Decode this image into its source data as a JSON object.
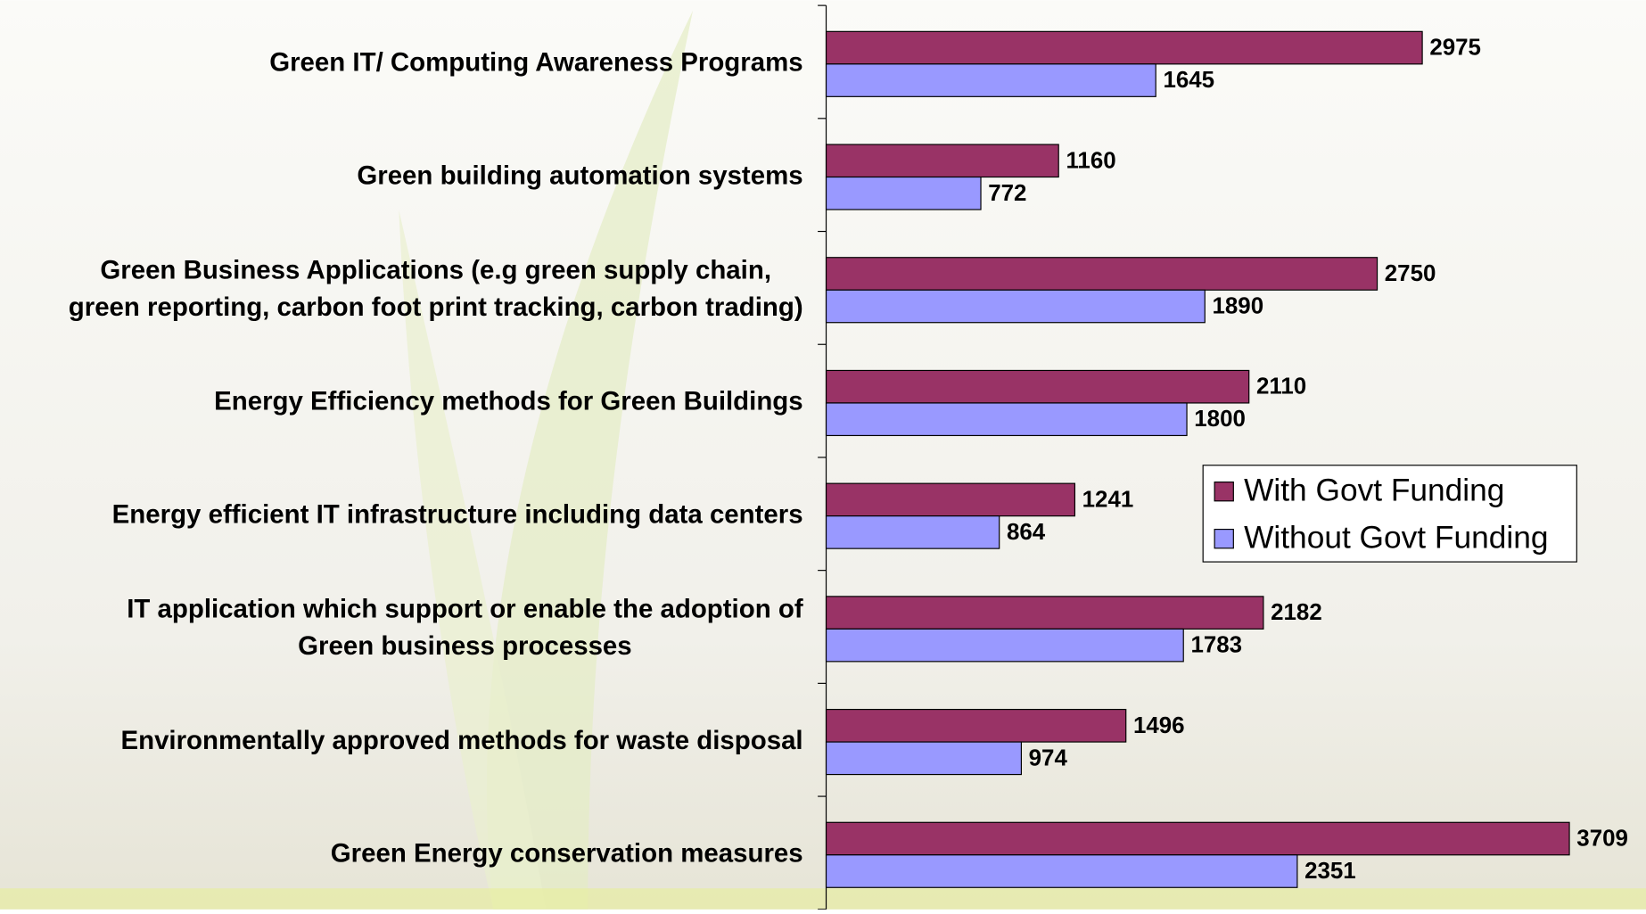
{
  "chart_data": {
    "type": "hbar",
    "categories": [
      "Green IT/ Computing Awareness Programs",
      "Green building automation systems",
      "Green Business Applications (e.g green supply chain,\ngreen reporting, carbon foot print tracking, carbon trading)",
      "Energy Efficiency methods for Green Buildings",
      "Energy efficient IT infrastructure including data centers",
      "IT application which support or enable the adoption of\nGreen business processes",
      "Environmentally approved methods for waste disposal",
      "Green Energy conservation measures"
    ],
    "series": [
      {
        "name": "With Govt Funding",
        "color": "#993366",
        "values": [
          2975,
          1160,
          2750,
          2110,
          1241,
          2182,
          1496,
          3709
        ]
      },
      {
        "name": "Without Govt Funding",
        "color": "#9999ff",
        "values": [
          1645,
          772,
          1890,
          1800,
          864,
          1783,
          974,
          2351
        ]
      }
    ],
    "xlim": [
      0,
      4000
    ],
    "legend": "right"
  }
}
